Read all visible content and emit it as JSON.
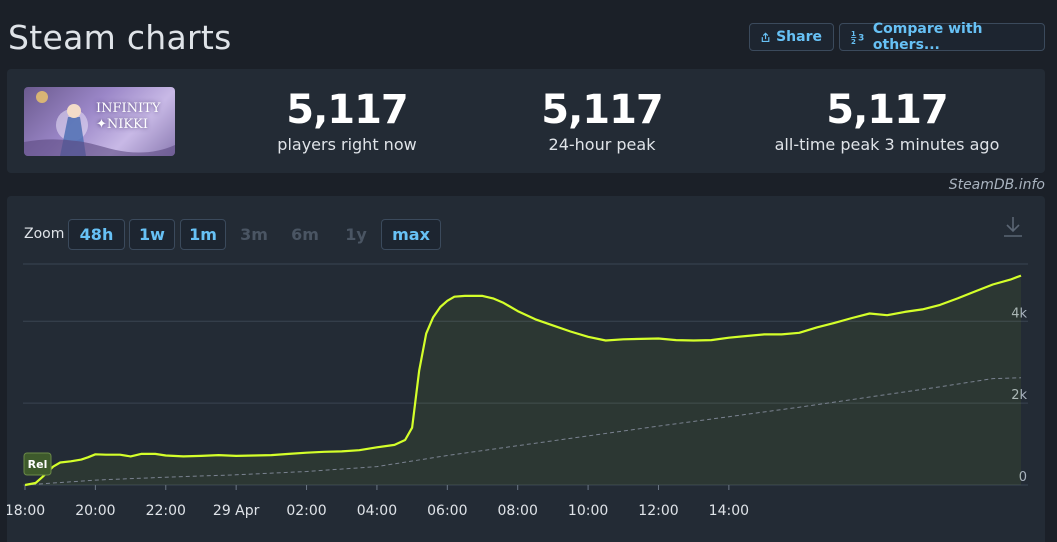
{
  "header": {
    "title": "Steam charts",
    "share_label": "Share",
    "compare_label": "Compare with others..."
  },
  "stats": {
    "current": {
      "value": "5,117",
      "label": "players right now"
    },
    "peak24": {
      "value": "5,117",
      "label": "24-hour peak"
    },
    "alltime": {
      "value": "5,117",
      "label": "all-time peak 3 minutes ago"
    }
  },
  "game": {
    "logo_line1": "INFINITY",
    "logo_line2": "✦NIKKI"
  },
  "credit": "SteamDB.info",
  "zoom": {
    "label": "Zoom",
    "options": [
      {
        "label": "48h",
        "enabled": true
      },
      {
        "label": "1w",
        "enabled": true
      },
      {
        "label": "1m",
        "enabled": true
      },
      {
        "label": "3m",
        "enabled": false
      },
      {
        "label": "6m",
        "enabled": false
      },
      {
        "label": "1y",
        "enabled": false
      },
      {
        "label": "max",
        "enabled": true
      }
    ]
  },
  "colors": {
    "line": "#d4ff2a",
    "accent": "#67c1f5",
    "background": "#1b2028",
    "panel": "#232b35"
  },
  "release_marker": "Rel",
  "chart_data": {
    "type": "line",
    "x_ticks": [
      "18:00",
      "20:00",
      "22:00",
      "29 Apr",
      "02:00",
      "04:00",
      "06:00",
      "08:00",
      "10:00",
      "12:00",
      "14:00"
    ],
    "y_ticks": [
      "0",
      "2k",
      "4k"
    ],
    "ylim": [
      0,
      5400
    ],
    "xlim_hours": [
      -0.1,
      20.7
    ],
    "series": [
      {
        "points": [
          [
            0,
            0
          ],
          [
            0.3,
            50
          ],
          [
            0.5,
            200
          ],
          [
            0.8,
            450
          ],
          [
            1.0,
            550
          ],
          [
            1.3,
            580
          ],
          [
            1.6,
            620
          ],
          [
            1.8,
            680
          ],
          [
            2.0,
            750
          ],
          [
            2.3,
            740
          ],
          [
            2.7,
            740
          ],
          [
            3.0,
            700
          ],
          [
            3.3,
            760
          ],
          [
            3.7,
            760
          ],
          [
            4.0,
            720
          ],
          [
            4.5,
            700
          ],
          [
            5.0,
            710
          ],
          [
            5.5,
            730
          ],
          [
            6.0,
            710
          ],
          [
            6.5,
            720
          ],
          [
            7.0,
            730
          ],
          [
            7.5,
            760
          ],
          [
            8.0,
            790
          ],
          [
            8.5,
            810
          ],
          [
            9.0,
            820
          ],
          [
            9.5,
            850
          ],
          [
            10.0,
            920
          ],
          [
            10.5,
            980
          ],
          [
            10.8,
            1100
          ],
          [
            11.0,
            1400
          ],
          [
            11.2,
            2800
          ],
          [
            11.4,
            3700
          ],
          [
            11.6,
            4100
          ],
          [
            11.8,
            4350
          ],
          [
            12.0,
            4500
          ],
          [
            12.2,
            4600
          ],
          [
            12.5,
            4620
          ],
          [
            13.0,
            4620
          ],
          [
            13.3,
            4560
          ],
          [
            13.6,
            4450
          ],
          [
            14.0,
            4250
          ],
          [
            14.5,
            4050
          ],
          [
            15.0,
            3900
          ],
          [
            15.5,
            3750
          ],
          [
            16.0,
            3620
          ],
          [
            16.5,
            3530
          ],
          [
            17.0,
            3560
          ],
          [
            17.5,
            3570
          ],
          [
            18.0,
            3580
          ],
          [
            18.5,
            3540
          ],
          [
            19.0,
            3530
          ],
          [
            19.5,
            3540
          ],
          [
            20.0,
            3600
          ],
          [
            20.5,
            3640
          ],
          [
            21.0,
            3680
          ],
          [
            21.5,
            3680
          ],
          [
            22.0,
            3720
          ],
          [
            22.5,
            3850
          ],
          [
            23.0,
            3960
          ],
          [
            23.5,
            4080
          ],
          [
            24.0,
            4190
          ],
          [
            24.5,
            4150
          ],
          [
            25.0,
            4230
          ],
          [
            25.5,
            4290
          ],
          [
            26.0,
            4400
          ],
          [
            26.5,
            4560
          ],
          [
            27.0,
            4730
          ],
          [
            27.5,
            4900
          ],
          [
            28.0,
            5020
          ],
          [
            28.3,
            5117
          ]
        ]
      },
      {
        "style": "dashed",
        "points": [
          [
            0,
            0
          ],
          [
            2,
            120
          ],
          [
            4,
            190
          ],
          [
            6,
            250
          ],
          [
            8,
            330
          ],
          [
            10,
            450
          ],
          [
            12,
            720
          ],
          [
            14,
            960
          ],
          [
            16,
            1200
          ],
          [
            18,
            1440
          ],
          [
            20,
            1670
          ],
          [
            22,
            1900
          ],
          [
            24,
            2150
          ],
          [
            26,
            2400
          ],
          [
            27.5,
            2600
          ],
          [
            28.3,
            2620
          ]
        ]
      }
    ],
    "legend": "none",
    "grid": true
  }
}
